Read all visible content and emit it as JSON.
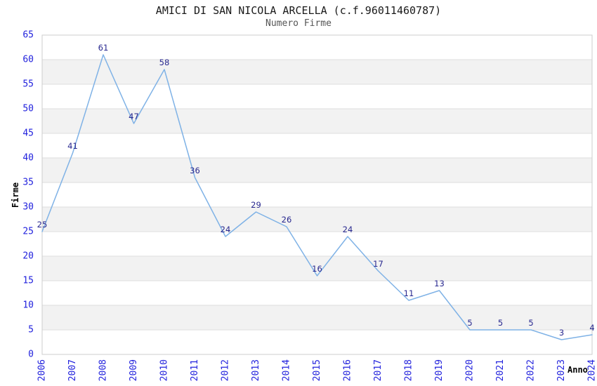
{
  "chart_data": {
    "type": "line",
    "title": "AMICI DI SAN NICOLA ARCELLA (c.f.96011460787)",
    "subtitle": "Numero Firme",
    "xlabel": "Anno",
    "ylabel": "Firme",
    "x": [
      "2006",
      "2007",
      "2008",
      "2009",
      "2010",
      "2011",
      "2012",
      "2013",
      "2014",
      "2015",
      "2016",
      "2017",
      "2018",
      "2019",
      "2020",
      "2021",
      "2022",
      "2023",
      "2024"
    ],
    "series": [
      {
        "name": "Numero Firme",
        "values": [
          25,
          41,
          61,
          47,
          58,
          36,
          24,
          29,
          26,
          16,
          24,
          17,
          11,
          13,
          5,
          5,
          5,
          3,
          4
        ]
      }
    ],
    "ylim": [
      0,
      65
    ],
    "ytick_step": 5,
    "grid": true,
    "alternating_bands": true,
    "legend_position": "none",
    "point_labels_visible": true,
    "colors": {
      "line": "#7FB2E6",
      "point_label": "#28288F",
      "axis_tick_label": "#2222DD",
      "band_fill": "#F2F2F2",
      "gridline": "#DDDDDD",
      "plot_border": "#CCCCCC",
      "title": "#1A1A1A",
      "subtitle": "#555555",
      "axis_title": "#000000",
      "background": "#FFFFFF"
    }
  }
}
